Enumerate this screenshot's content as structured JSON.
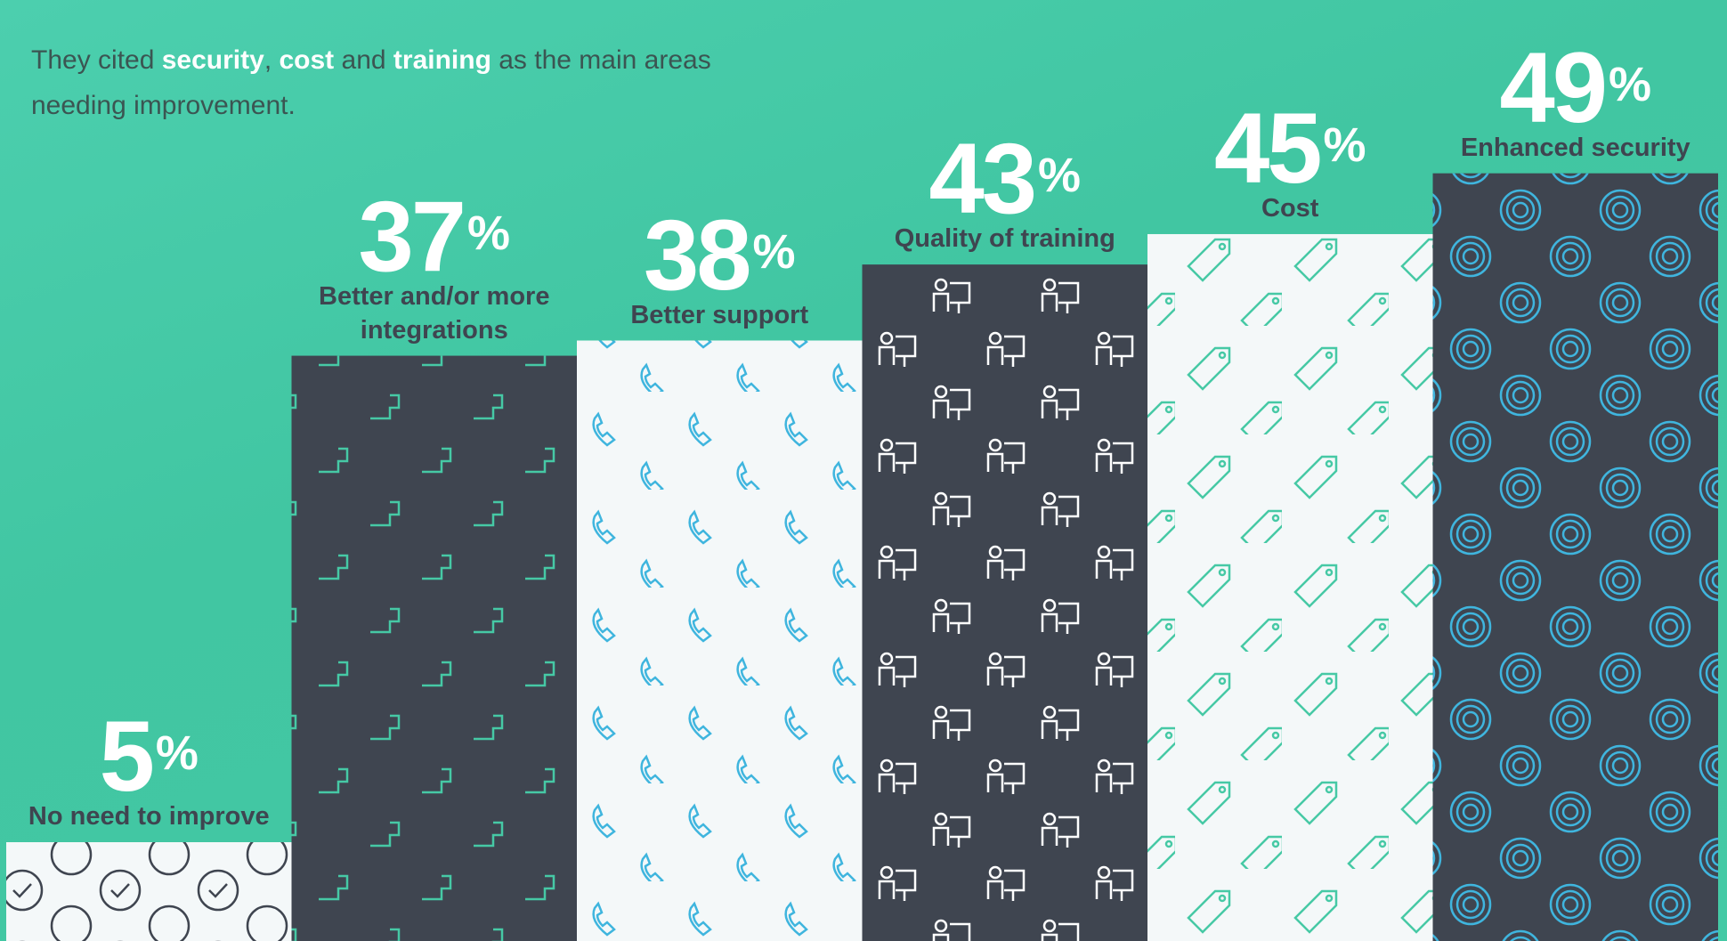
{
  "chart_data": {
    "type": "bar",
    "subtitle_parts": [
      "They cited ",
      "security",
      ", ",
      "cost",
      " and ",
      "training",
      " as the main areas needing improvement."
    ],
    "categories": [
      "No need to improve",
      "Better and/or more integrations",
      "Better support",
      "Quality of training",
      "Cost",
      "Enhanced security"
    ],
    "values": [
      5,
      37,
      38,
      43,
      45,
      49
    ],
    "unit": "%",
    "colors": [
      "#f4f8f9",
      "#3f4550",
      "#f4f8f9",
      "#3f4550",
      "#f4f8f9",
      "#3f4550"
    ],
    "ylim": [
      -1.5,
      60.4
    ]
  }
}
